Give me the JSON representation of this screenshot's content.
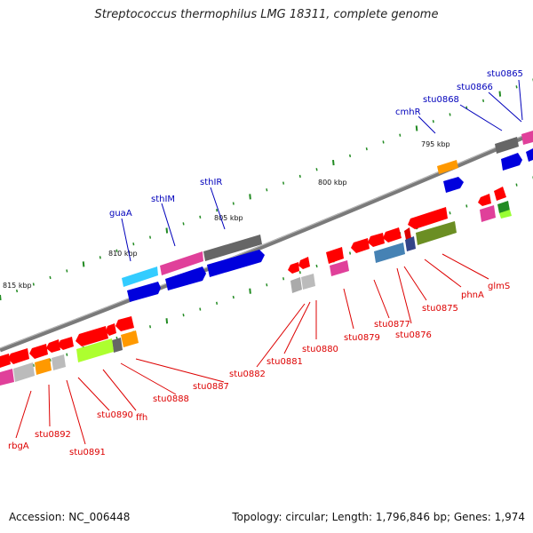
{
  "header": {
    "title": "Streptococcus thermophilus LMG 18311, complete genome"
  },
  "footer": {
    "accession": "Accession: NC_006448",
    "summary": "Topology: circular; Length: 1,796,846 bp; Genes: 1,974"
  },
  "colors": {
    "plus_label": "#0000bb",
    "minus_label": "#dd0000",
    "backbone": "#808080",
    "tick": "#228b22"
  },
  "ruler": [
    {
      "text": "795 kbp"
    },
    {
      "text": "800 kbp"
    },
    {
      "text": "805 kbp"
    },
    {
      "text": "810 kbp"
    },
    {
      "text": "815 kbp"
    }
  ],
  "genes_plus": [
    {
      "name": "stu0865"
    },
    {
      "name": "stu0866"
    },
    {
      "name": "stu0868"
    },
    {
      "name": "cmhR"
    },
    {
      "name": "sthIR"
    },
    {
      "name": "sthIM"
    },
    {
      "name": "guaA"
    }
  ],
  "genes_minus": [
    {
      "name": "glmS"
    },
    {
      "name": "phnA"
    },
    {
      "name": "stu0875"
    },
    {
      "name": "stu0876"
    },
    {
      "name": "stu0877"
    },
    {
      "name": "stu0879"
    },
    {
      "name": "stu0880"
    },
    {
      "name": "stu0881"
    },
    {
      "name": "stu0882"
    },
    {
      "name": "stu0887"
    },
    {
      "name": "stu0888"
    },
    {
      "name": "ffh"
    },
    {
      "name": "stu0890"
    },
    {
      "name": "stu0891"
    },
    {
      "name": "stu0892"
    },
    {
      "name": "rbgA"
    }
  ]
}
